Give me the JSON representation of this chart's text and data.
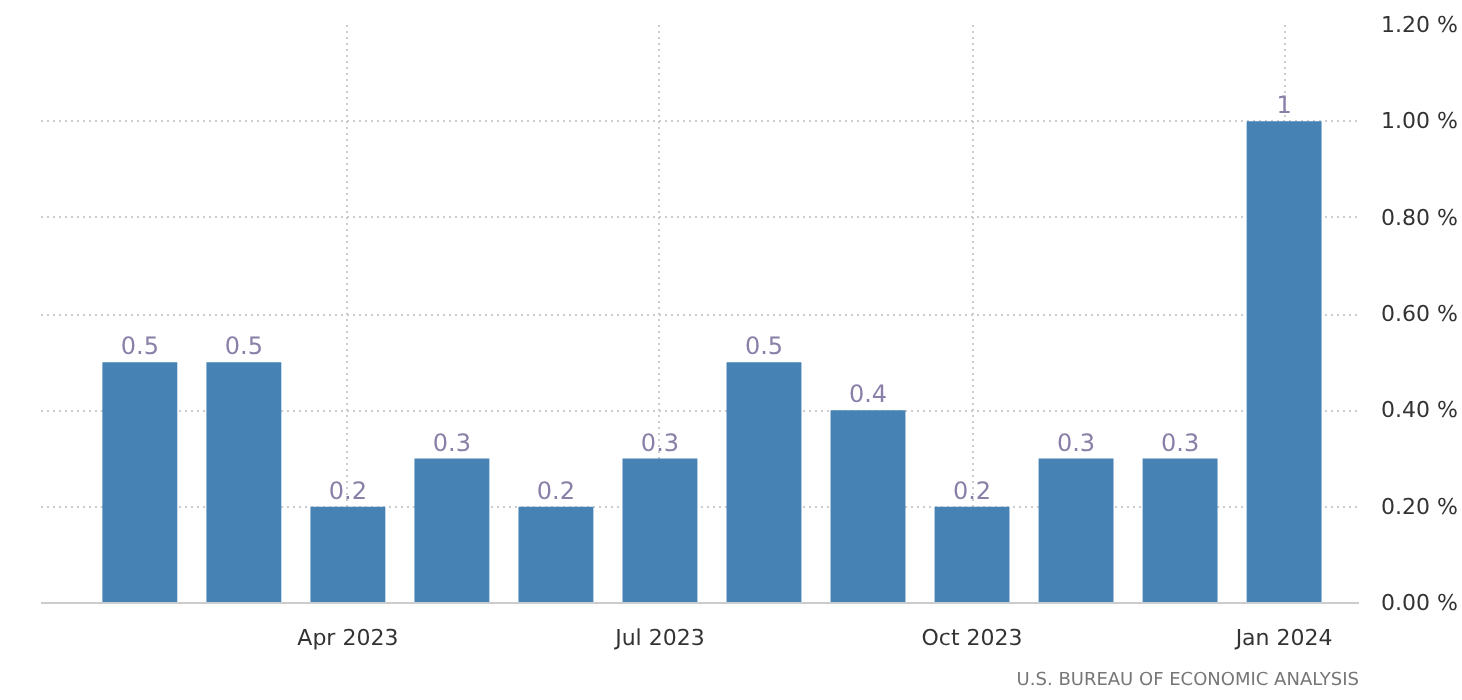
{
  "chart_data": {
    "type": "bar",
    "categories": [
      null,
      null,
      "Apr 2023",
      null,
      null,
      "Jul 2023",
      null,
      null,
      "Oct 2023",
      null,
      null,
      "Jan 2024"
    ],
    "values": [
      0.5,
      0.5,
      0.2,
      0.3,
      0.2,
      0.3,
      0.5,
      0.4,
      0.2,
      0.3,
      0.3,
      1
    ],
    "color": "#4682b4",
    "data_labels": true,
    "ylim": [
      0,
      1.2
    ],
    "yticks": [
      {
        "value": 0,
        "label": "0.00 %"
      },
      {
        "value": 0.2,
        "label": "0.20 %"
      },
      {
        "value": 0.4,
        "label": "0.40 %"
      },
      {
        "value": 0.6,
        "label": "0.60 %"
      },
      {
        "value": 0.8,
        "label": "0.80 %"
      },
      {
        "value": 1.0,
        "label": "1.00 %"
      },
      {
        "value": 1.2,
        "label": "1.20 %"
      }
    ],
    "grid": true,
    "annotations": [
      "U.S. BUREAU OF ECONOMIC ANALYSIS"
    ]
  }
}
